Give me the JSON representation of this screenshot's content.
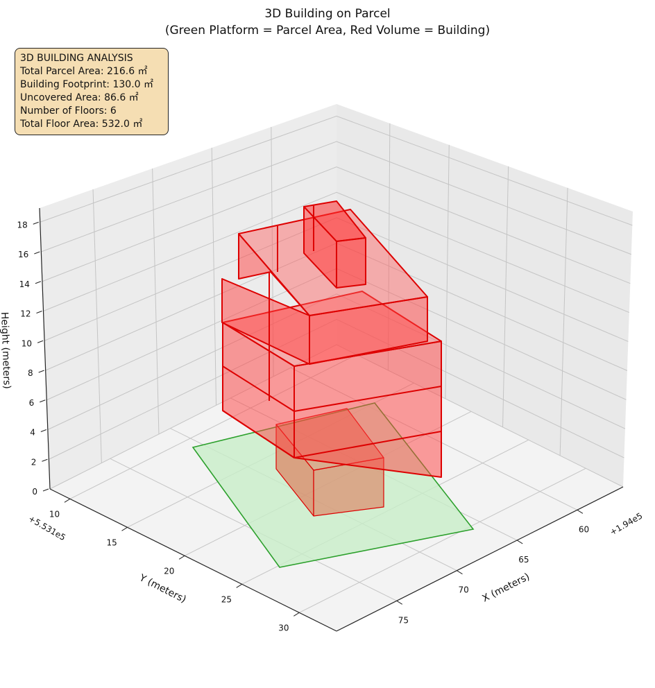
{
  "chart_data": {
    "type": "3d-polygons",
    "title": "3D Building on Parcel",
    "subtitle": "(Green Platform = Parcel Area, Red Volume = Building)",
    "xlabel": "X (meters)",
    "ylabel": "Y (meters)",
    "zlabel": "Height (meters)",
    "x_offset": "+1.94e5",
    "y_offset": "+5.531e5",
    "x_ticks": [
      "60",
      "65",
      "70",
      "75"
    ],
    "y_ticks": [
      "10",
      "15",
      "20",
      "25",
      "30"
    ],
    "z_ticks": [
      "0",
      "2",
      "4",
      "6",
      "8",
      "10",
      "12",
      "14",
      "16",
      "18"
    ],
    "zlim": [
      0,
      18
    ],
    "grid": true,
    "series": [
      {
        "name": "Parcel Area",
        "color": "#2ca02c",
        "fill": "#d4f0d4"
      },
      {
        "name": "Building",
        "color": "#dd0000",
        "fill": "#ff4d4d"
      }
    ]
  },
  "info_box": {
    "lines": [
      "3D BUILDING ANALYSIS",
      "Total Parcel Area: 216.6 ㎡",
      "Building Footprint: 130.0 ㎡",
      "Uncovered Area: 86.6 ㎡",
      "Number of Floors: 6",
      "Total Floor Area: 532.0 ㎡"
    ],
    "background": "#f5deb3"
  }
}
